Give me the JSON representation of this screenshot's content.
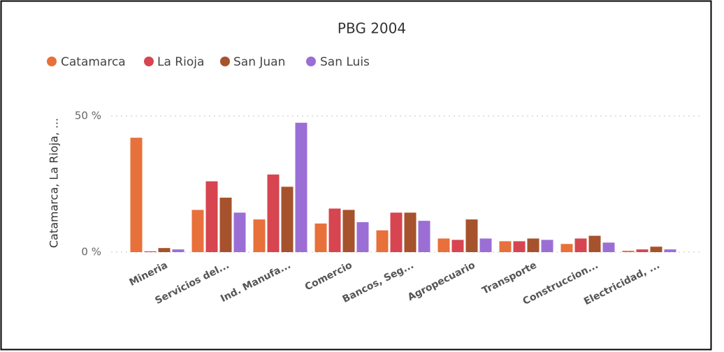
{
  "chart_data": {
    "type": "bar",
    "title": "PBG 2004",
    "y_label": "Catamarca, La Rioja, ...",
    "categories": [
      "Mineria",
      "Servicios del...",
      "Ind. Manufa...",
      "Comercio",
      "Bancos, Seg...",
      "Agropecuario",
      "Transporte",
      "Construccion...",
      "Electricidad, ..."
    ],
    "series": [
      {
        "name": "Catamarca",
        "color": "#E8703A",
        "values": [
          42,
          15.5,
          12,
          10.5,
          8,
          5,
          4,
          3,
          0.5
        ]
      },
      {
        "name": "La Rioja",
        "color": "#D64550",
        "values": [
          0.3,
          26,
          28.5,
          16,
          14.5,
          4.5,
          4,
          5,
          1
        ]
      },
      {
        "name": "San Juan",
        "color": "#A6522C",
        "values": [
          1.5,
          20,
          24,
          15.5,
          14.5,
          12,
          5,
          6,
          2
        ]
      },
      {
        "name": "San Luis",
        "color": "#9B6ED6",
        "values": [
          1,
          14.5,
          47.5,
          11,
          11.5,
          5,
          4.5,
          3.5,
          1
        ]
      }
    ],
    "ylim": [
      0,
      50
    ],
    "yticks": [
      {
        "value": 0,
        "label": "0 %"
      },
      {
        "value": 50,
        "label": "50 %"
      }
    ],
    "grid": true,
    "legend": "top-left"
  }
}
